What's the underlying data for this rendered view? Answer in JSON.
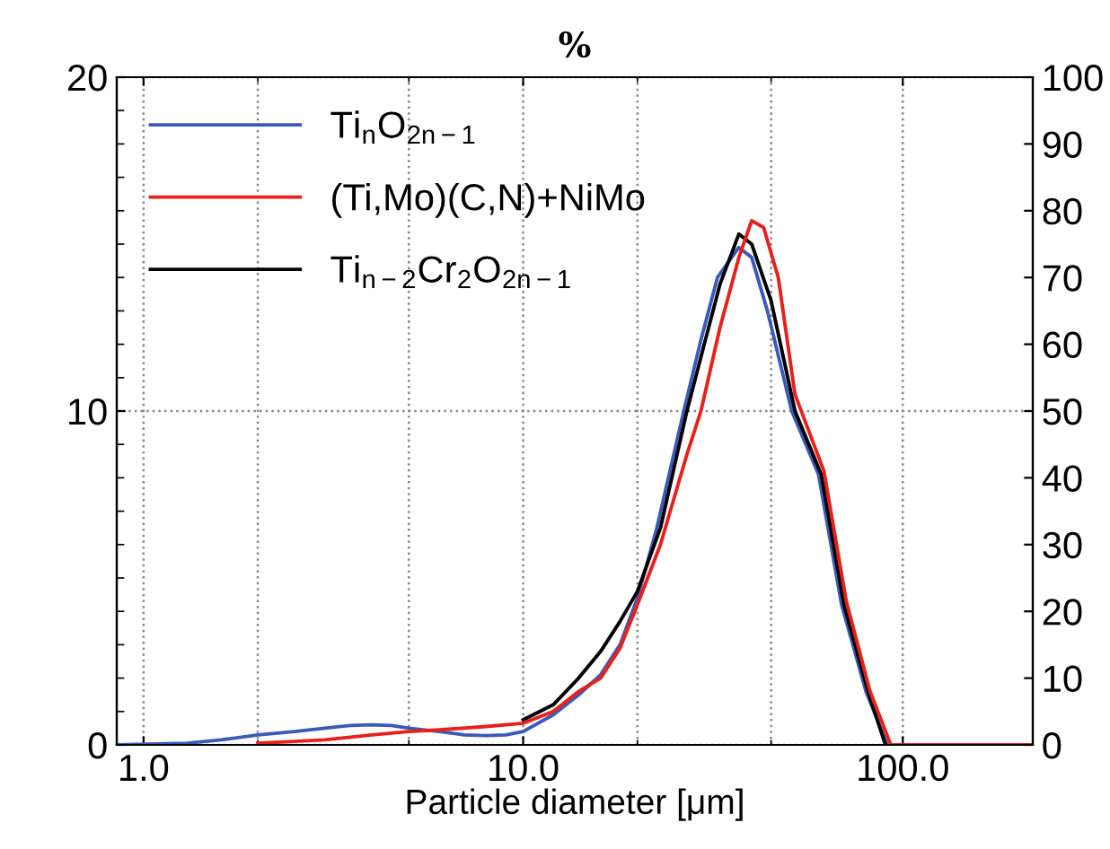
{
  "chart_data": {
    "type": "line",
    "title": "%",
    "xlabel": "Particle diameter [μm]",
    "log": "x",
    "xlim": [
      0.85,
      220
    ],
    "xticks": [
      {
        "value": 1,
        "label": "1.0"
      },
      {
        "value": 2,
        "label": null
      },
      {
        "value": 5,
        "label": null
      },
      {
        "value": 10,
        "label": "10.0"
      },
      {
        "value": 20,
        "label": null
      },
      {
        "value": 45,
        "label": null
      },
      {
        "value": 100,
        "label": "100.0"
      }
    ],
    "ylim": [
      0,
      20
    ],
    "yticks": [
      0,
      {
        "value": 1,
        "label": null
      },
      {
        "value": 2,
        "label": null
      },
      {
        "value": 3,
        "label": null
      },
      {
        "value": 4,
        "label": null
      },
      {
        "value": 5,
        "label": null
      },
      {
        "value": 6,
        "label": null
      },
      {
        "value": 7,
        "label": null
      },
      {
        "value": 8,
        "label": null
      },
      {
        "value": 9,
        "label": null
      },
      10,
      {
        "value": 11,
        "label": null
      },
      {
        "value": 12,
        "label": null
      },
      {
        "value": 13,
        "label": null
      },
      {
        "value": 14,
        "label": null
      },
      {
        "value": 15,
        "label": null
      },
      {
        "value": 16,
        "label": null
      },
      {
        "value": 17,
        "label": null
      },
      {
        "value": 18,
        "label": null
      },
      {
        "value": 19,
        "label": null
      },
      20
    ],
    "y2lim": [
      0,
      100
    ],
    "y2ticks": [
      0,
      10,
      20,
      30,
      40,
      50,
      60,
      70,
      80,
      90,
      100
    ],
    "grid": true,
    "legend": "top left",
    "line_style": "solid",
    "marker": "none",
    "series": [
      {
        "name": "Ti$_{n}$O$_{2n−1}$",
        "color": "#3a5ab8",
        "x": [
          0.85,
          1.3,
          1.6,
          2,
          2.5,
          3,
          3.5,
          4,
          4.5,
          5,
          6,
          7,
          8,
          9,
          10,
          12,
          14,
          16,
          18,
          20,
          22.5,
          26.5,
          29.5,
          32.5,
          37,
          40,
          44,
          51,
          60,
          69,
          80,
          91
        ],
        "values": [
          0,
          0.05,
          0.15,
          0.3,
          0.4,
          0.5,
          0.58,
          0.6,
          0.58,
          0.5,
          0.4,
          0.3,
          0.28,
          0.3,
          0.4,
          0.9,
          1.5,
          2.1,
          3.0,
          4.4,
          6.5,
          10.0,
          12.2,
          14.0,
          14.9,
          14.6,
          13.0,
          10.0,
          8.1,
          4.2,
          1.6,
          0
        ]
      },
      {
        "name": "(Ti,Mo)(C,N)+NiMo",
        "color": "#e8201c",
        "x": [
          2,
          3,
          4,
          5,
          6,
          8,
          10,
          12,
          14,
          16,
          18,
          20,
          23,
          27,
          29.4,
          33,
          37,
          40,
          43,
          47,
          52,
          62,
          71,
          82,
          93,
          150,
          220
        ],
        "values": [
          0.05,
          0.15,
          0.3,
          0.4,
          0.45,
          0.55,
          0.65,
          1.0,
          1.6,
          2.0,
          2.9,
          4.2,
          6.0,
          8.7,
          10.0,
          12.5,
          14.6,
          15.7,
          15.5,
          14.0,
          10.5,
          8.2,
          4.3,
          1.6,
          0,
          0,
          0
        ]
      },
      {
        "name": "Ti$_{n−2}$Cr$_{2}$O$_{2n−1}$",
        "color": "#000000",
        "x": [
          10,
          12,
          14,
          16,
          18,
          20,
          23,
          27,
          30,
          33,
          37,
          40,
          45,
          52,
          61,
          70,
          81,
          90
        ],
        "values": [
          0.75,
          1.2,
          2.0,
          2.8,
          3.7,
          4.6,
          6.5,
          10.0,
          12.0,
          13.8,
          15.3,
          15.0,
          13.3,
          10.0,
          8.1,
          4.2,
          1.6,
          0
        ]
      }
    ]
  }
}
